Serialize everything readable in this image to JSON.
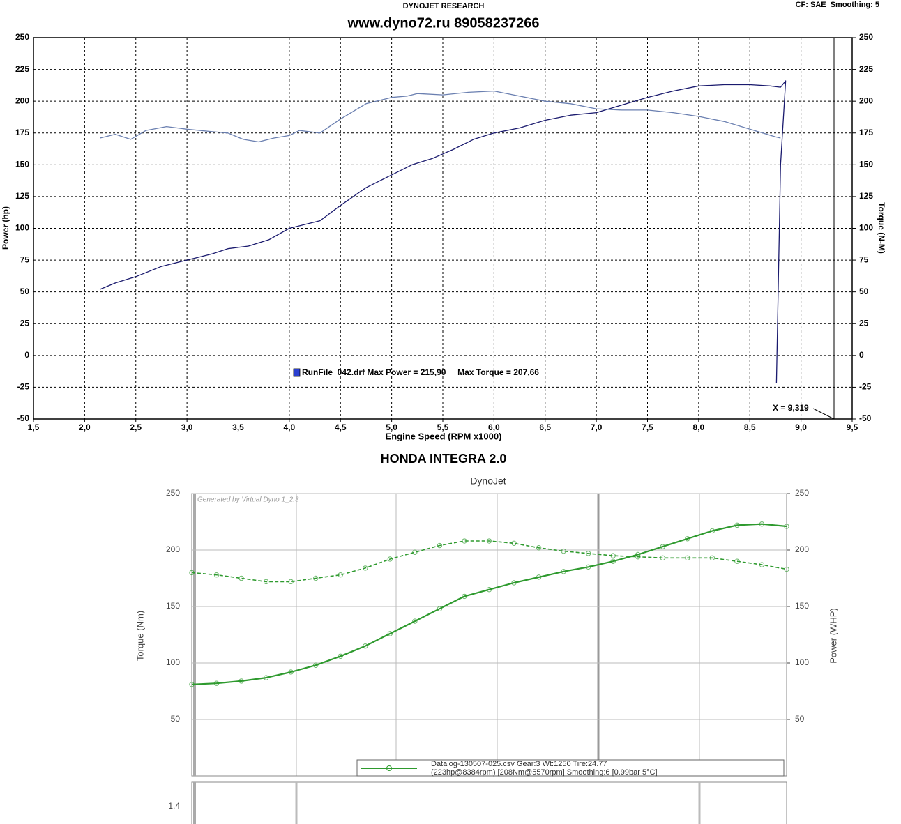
{
  "vehicle": "HONDA INTEGRA 2.0",
  "chart_data": [
    {
      "type": "line",
      "source": "DYNOJET RESEARCH",
      "settings_note": "CF: SAE  Smoothing: 5",
      "title": "www.dyno72.ru 89058237266",
      "x_label": "Engine Speed (RPM x1000)",
      "y_label": "Power (hp)",
      "y2_label": "Torque (N-M)",
      "legend": "RunFile_042.drf Max Power = 215,90     Max Torque = 207,66",
      "annotation": "X = 9,319",
      "grid": true,
      "xlim": [
        1.5,
        9.5
      ],
      "xticks": [
        {
          "value": 1.5,
          "label": "1,5"
        },
        {
          "value": 2.0,
          "label": "2,0"
        },
        {
          "value": 2.5,
          "label": "2,5"
        },
        {
          "value": 3.0,
          "label": "3,0"
        },
        {
          "value": 3.5,
          "label": "3,5"
        },
        {
          "value": 4.0,
          "label": "4,0"
        },
        {
          "value": 4.5,
          "label": "4,5"
        },
        {
          "value": 5.0,
          "label": "5,0"
        },
        {
          "value": 5.5,
          "label": "5,5"
        },
        {
          "value": 6.0,
          "label": "6,0"
        },
        {
          "value": 6.5,
          "label": "6,5"
        },
        {
          "value": 7.0,
          "label": "7,0"
        },
        {
          "value": 7.5,
          "label": "7,5"
        },
        {
          "value": 8.0,
          "label": "8,0"
        },
        {
          "value": 8.5,
          "label": "8,5"
        },
        {
          "value": 9.0,
          "label": "9,0"
        },
        {
          "value": 9.5,
          "label": "9,5"
        }
      ],
      "ylim": [
        -50,
        250
      ],
      "yticks": [
        250,
        225,
        200,
        175,
        150,
        125,
        100,
        75,
        50,
        25,
        0,
        -25,
        -50
      ],
      "y2lim": [
        -50,
        250
      ],
      "y2ticks": [
        250,
        225,
        200,
        175,
        150,
        125,
        100,
        75,
        50,
        25,
        0,
        -25,
        -50
      ],
      "series": [
        {
          "color": "#1a1a6e",
          "x": [
            2.15,
            2.3,
            2.5,
            2.75,
            3.0,
            3.25,
            3.4,
            3.6,
            3.8,
            4.0,
            4.1,
            4.3,
            4.5,
            4.75,
            5.0,
            5.2,
            5.4,
            5.6,
            5.8,
            6.0,
            6.25,
            6.5,
            6.75,
            7.0,
            7.25,
            7.5,
            7.75,
            8.0,
            8.25,
            8.5,
            8.7,
            8.8,
            8.85,
            8.8,
            8.76
          ],
          "values": [
            52,
            57,
            62,
            70,
            75,
            80,
            84,
            86,
            91,
            100,
            102,
            106,
            118,
            132,
            142,
            150,
            155,
            162,
            170,
            175,
            179,
            185,
            189,
            191,
            197,
            203,
            208,
            212,
            213,
            213,
            212,
            211,
            216,
            150,
            -22
          ]
        },
        {
          "color": "#6a7fb0",
          "axis": "y2",
          "x": [
            2.15,
            2.3,
            2.45,
            2.6,
            2.8,
            3.0,
            3.25,
            3.4,
            3.55,
            3.7,
            3.85,
            4.0,
            4.1,
            4.3,
            4.5,
            4.75,
            5.0,
            5.15,
            5.25,
            5.5,
            5.75,
            6.0,
            6.25,
            6.5,
            6.75,
            7.0,
            7.25,
            7.5,
            7.75,
            8.0,
            8.25,
            8.5,
            8.75,
            8.8
          ],
          "values": [
            171,
            174,
            170,
            177,
            180,
            178,
            176,
            175,
            170,
            168,
            171,
            173,
            177,
            175,
            186,
            198,
            203,
            204,
            206,
            205,
            207,
            208,
            204,
            200,
            198,
            194,
            193,
            193,
            191,
            188,
            184,
            178,
            172,
            171
          ]
        }
      ]
    },
    {
      "type": "line",
      "title": "DynoJet",
      "watermark": "Generated by Virtual Dyno 1_2.3",
      "y_label": "Torque (Nm)",
      "y2_label": "Power (WHP)",
      "legend_lines": [
        "Datalog-130507-025.csv Gear:3 Wt:1250 Tire:24.77",
        "(223hp@8384rpm) [208Nm@5570rpm] Smoothing:6 [0.99bar 5°C]"
      ],
      "lower_panel_label": "1.4",
      "ylim": [
        0,
        250
      ],
      "yticks": [
        250,
        200,
        150,
        100,
        50
      ],
      "y2lim": [
        0,
        250
      ],
      "y2ticks": [
        250,
        200,
        150,
        100,
        50
      ],
      "categories": [
        null,
        null,
        null,
        null,
        null,
        null,
        null,
        null,
        null,
        null,
        null,
        null,
        null,
        null,
        null,
        null,
        null,
        null,
        null,
        null,
        null,
        null,
        null,
        null,
        null
      ],
      "series": [
        {
          "color": "#2e9a2e",
          "dashed": true,
          "values": [
            180,
            178,
            175,
            172,
            172,
            175,
            178,
            184,
            192,
            198,
            204,
            208,
            208,
            206,
            202,
            199,
            197,
            195,
            194,
            193,
            193,
            193,
            190,
            187,
            183
          ]
        },
        {
          "color": "#2e9a2e",
          "axis": "y2",
          "values": [
            81,
            82,
            84,
            87,
            92,
            98,
            106,
            115,
            126,
            137,
            148,
            159,
            165,
            171,
            176,
            181,
            185,
            190,
            196,
            203,
            210,
            217,
            222,
            223,
            221
          ]
        }
      ]
    }
  ]
}
